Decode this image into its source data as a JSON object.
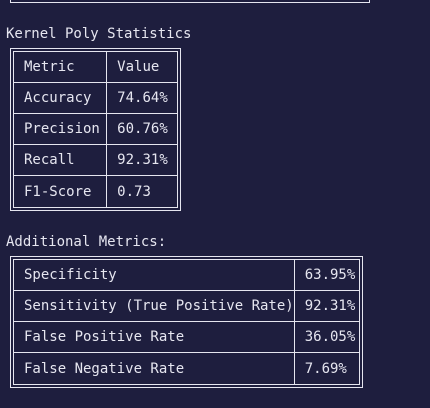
{
  "kernel_poly": {
    "title": "Kernel Poly Statistics",
    "header": {
      "metric": "Metric",
      "value": "Value"
    },
    "rows": [
      {
        "metric": "Accuracy",
        "value": "74.64%"
      },
      {
        "metric": "Precision",
        "value": "60.76%"
      },
      {
        "metric": "Recall",
        "value": "92.31%"
      },
      {
        "metric": "F1-Score",
        "value": "0.73"
      }
    ]
  },
  "additional": {
    "title": "Additional Metrics:",
    "rows": [
      {
        "metric": "Specificity",
        "value": "63.95%"
      },
      {
        "metric": "Sensitivity (True Positive Rate)",
        "value": "92.31%"
      },
      {
        "metric": "False Positive Rate",
        "value": "36.05%"
      },
      {
        "metric": "False Negative Rate",
        "value": "7.69%"
      }
    ]
  }
}
